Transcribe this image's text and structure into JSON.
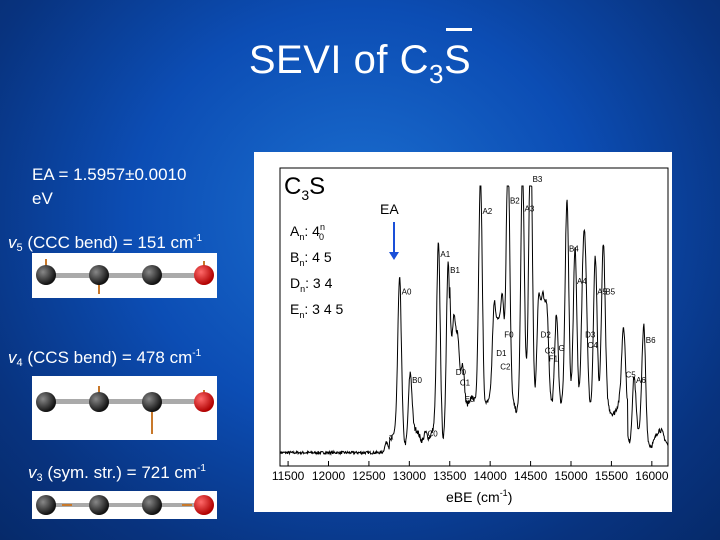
{
  "slide": {
    "title_prefix": "SEVI of C",
    "title_sub": "3",
    "title_suffix": "S",
    "ea_line1": "EA = 1.5957±0.0010",
    "ea_line2": "eV",
    "v5_label": "v",
    "v5_sub": "5",
    "v5_text": " (CCC bend) = 151 cm",
    "v5_exp": "-1",
    "v4_label": "v",
    "v4_sub": "4",
    "v4_text": " (CCS bend) = 478 cm",
    "v4_exp": "-1",
    "v3_label": "v",
    "v3_sub": "3",
    "v3_text": " (sym. str.) = 721 cm",
    "v3_exp": "-1"
  },
  "figure": {
    "molecule_label": "C",
    "molecule_sub": "3",
    "molecule_suffix": "S",
    "ea_marker": "EA",
    "legend": [
      {
        "key": "A",
        "text": ": 4"
      },
      {
        "key": "B",
        "text": ": 4 5"
      },
      {
        "key": "D",
        "text": ": 3 4"
      },
      {
        "key": "E",
        "text": ": 3 4 5"
      }
    ],
    "xlabel": "eBE (cm",
    "xlabel_exp": "-1",
    "xlabel_close": ")",
    "colors": {
      "trace": "#000000",
      "carbon": "#333333",
      "sulfur": "#e01010",
      "arrow": "#c8782a"
    }
  },
  "chart_data": {
    "type": "line",
    "xlabel": "eBE (cm-1)",
    "xlim": [
      11400,
      16200
    ],
    "x_ticks": [
      "11500",
      "12000",
      "12500",
      "13000",
      "13500",
      "14000",
      "14500",
      "15000",
      "15500",
      "16000"
    ],
    "peaks": [
      {
        "label": "a",
        "x": 12720,
        "y": 0.04
      },
      {
        "label": "A0",
        "x": 12880,
        "y": 0.58
      },
      {
        "label": "B0",
        "x": 13010,
        "y": 0.25
      },
      {
        "label": "C0",
        "x": 13200,
        "y": 0.05
      },
      {
        "label": "A1",
        "x": 13360,
        "y": 0.72
      },
      {
        "label": "B1",
        "x": 13480,
        "y": 0.66
      },
      {
        "label": "D0",
        "x": 13550,
        "y": 0.28
      },
      {
        "label": "C1",
        "x": 13600,
        "y": 0.24
      },
      {
        "label": "E0",
        "x": 13660,
        "y": 0.18
      },
      {
        "label": "A2",
        "x": 13880,
        "y": 0.88
      },
      {
        "label": "D1",
        "x": 14050,
        "y": 0.35
      },
      {
        "label": "C2",
        "x": 14100,
        "y": 0.3
      },
      {
        "label": "F0",
        "x": 14150,
        "y": 0.42
      },
      {
        "label": "B2",
        "x": 14220,
        "y": 0.92
      },
      {
        "label": "A3",
        "x": 14400,
        "y": 0.89
      },
      {
        "label": "B3",
        "x": 14500,
        "y": 1.0
      },
      {
        "label": "D2",
        "x": 14600,
        "y": 0.42
      },
      {
        "label": "C3",
        "x": 14650,
        "y": 0.36
      },
      {
        "label": "F1",
        "x": 14700,
        "y": 0.33
      },
      {
        "label": "G",
        "x": 14820,
        "y": 0.37
      },
      {
        "label": "B4",
        "x": 14950,
        "y": 0.74
      },
      {
        "label": "A4",
        "x": 15050,
        "y": 0.62
      },
      {
        "label": "D3",
        "x": 15150,
        "y": 0.42
      },
      {
        "label": "C4",
        "x": 15180,
        "y": 0.38
      },
      {
        "label": "A5",
        "x": 15300,
        "y": 0.58
      },
      {
        "label": "B5",
        "x": 15400,
        "y": 0.58
      },
      {
        "label": "C5",
        "x": 15650,
        "y": 0.27
      },
      {
        "label": "A6",
        "x": 15780,
        "y": 0.25
      },
      {
        "label": "B6",
        "x": 15900,
        "y": 0.4
      }
    ]
  }
}
